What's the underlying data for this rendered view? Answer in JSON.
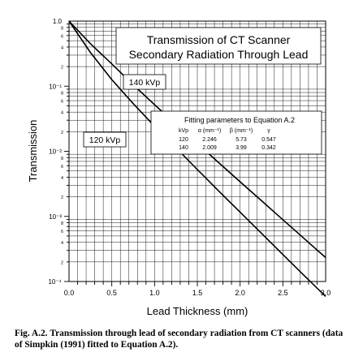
{
  "chart_data": {
    "type": "line",
    "title": "Transmission of CT Scanner",
    "subtitle": "Secondary Radiation Through Lead",
    "xlabel": "Lead Thickness (mm)",
    "ylabel": "Transmission",
    "xlim": [
      0.0,
      3.0
    ],
    "ylim": [
      0.0001,
      1.0
    ],
    "yscale": "log",
    "grid": true,
    "x_ticks": [
      "0.0",
      "0.5",
      "1.0",
      "1.5",
      "2.0",
      "2.5",
      "3.0"
    ],
    "y_decade_labels": [
      "1.0",
      "10⁻¹",
      "10⁻²",
      "10⁻³",
      "10⁻⁴"
    ],
    "y_minor_labels": [
      "8",
      "6",
      "4",
      "2"
    ],
    "series": [
      {
        "name": "140 kVp",
        "alpha": 2.009,
        "beta": 3.99,
        "gamma": 0.342,
        "x": [
          0.0,
          0.25,
          0.5,
          0.75,
          1.0,
          1.25,
          1.5,
          1.75,
          2.0,
          2.25,
          2.5,
          2.75,
          3.0
        ],
        "y": [
          1.0,
          0.45,
          0.22,
          0.105,
          0.052,
          0.026,
          0.0132,
          0.0067,
          0.0034,
          0.00174,
          0.00089,
          0.000455,
          0.000233
        ]
      },
      {
        "name": "120 kVp",
        "alpha": 2.246,
        "beta": 5.73,
        "gamma": 0.547,
        "x": [
          0.0,
          0.25,
          0.5,
          0.75,
          1.0,
          1.25,
          1.5,
          1.75,
          2.0,
          2.25,
          2.5,
          2.75,
          3.0
        ],
        "y": [
          1.0,
          0.33,
          0.126,
          0.054,
          0.0243,
          0.0113,
          0.00525,
          0.00246,
          0.00116,
          0.00055,
          0.00026,
          0.000123,
          5.9e-05
        ]
      }
    ],
    "annotations": {
      "label_140": "140 kVp",
      "label_120": "120 kVp",
      "param_table": {
        "title": "Fitting parameters to Equation A.2",
        "headers": [
          "kVp",
          "α (mm⁻¹)",
          "β (mm⁻¹)",
          "γ"
        ],
        "rows": [
          [
            "120",
            "2.246",
            "5.73",
            "0.547"
          ],
          [
            "140",
            "2.009",
            "3.99",
            "0.342"
          ]
        ]
      }
    }
  },
  "caption": {
    "label": "Fig. A.2.",
    "text": "Transmission through lead of secondary radiation from CT scanners (data of Simpkin (1991) fitted to Equation A.2)."
  }
}
